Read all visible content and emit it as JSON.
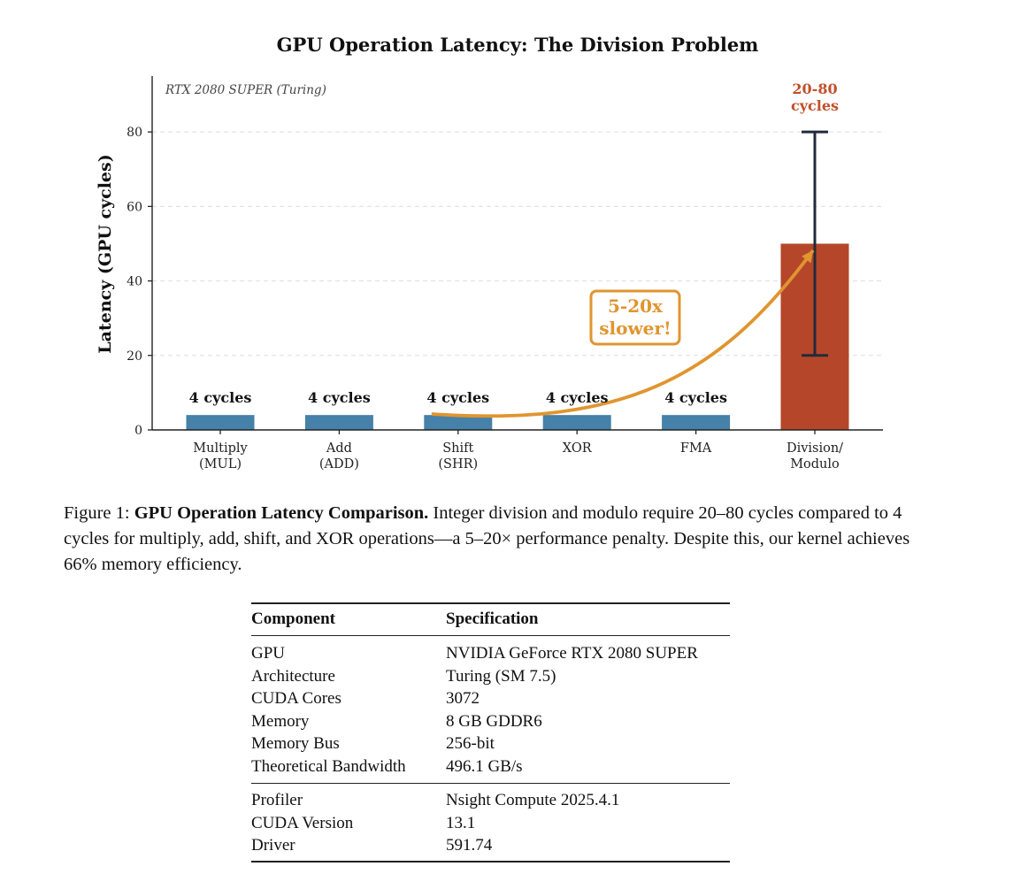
{
  "chart_data": {
    "type": "bar",
    "title": "GPU Operation Latency: The Division Problem",
    "subtitle": "RTX 2080 SUPER (Turing)",
    "ylabel": "Latency (GPU cycles)",
    "xlabel": "",
    "ylim": [
      0,
      95
    ],
    "yticks": [
      0,
      20,
      40,
      60,
      80
    ],
    "grid": true,
    "categories": [
      "Multiply\n(MUL)",
      "Add\n(ADD)",
      "Shift\n(SHR)",
      "XOR",
      "FMA",
      "Division/\nModulo"
    ],
    "values": [
      4,
      4,
      4,
      4,
      4,
      50
    ],
    "error_range": {
      "index": 5,
      "low": 20,
      "high": 80
    },
    "data_labels": [
      "4 cycles",
      "4 cycles",
      "4 cycles",
      "4 cycles",
      "4 cycles",
      "20-80\ncycles"
    ],
    "annotation": {
      "text": "5-20x\nslower!",
      "from_index": 2,
      "to_index": 5
    },
    "colors": {
      "bar": "#4581a8",
      "division_bar": "#b5462a",
      "division_label": "#c0502a",
      "error_bar": "#222b3a",
      "annotation": "#e0952f",
      "grid": "#dddddd",
      "axis": "#222222"
    }
  },
  "caption": {
    "prefix": "Figure 1: ",
    "title": "GPU Operation Latency Comparison.",
    "body": " Integer division and modulo require 20–80 cycles compared to 4 cycles for multiply, add, shift, and XOR operations—a 5–20× performance penalty. Despite this, our kernel achieves 66% memory efficiency."
  },
  "table": {
    "headers": [
      "Component",
      "Specification"
    ],
    "group1": [
      [
        "GPU",
        "NVIDIA GeForce RTX 2080 SUPER"
      ],
      [
        "Architecture",
        "Turing (SM 7.5)"
      ],
      [
        "CUDA Cores",
        "3072"
      ],
      [
        "Memory",
        "8 GB GDDR6"
      ],
      [
        "Memory Bus",
        "256-bit"
      ],
      [
        "Theoretical Bandwidth",
        "496.1 GB/s"
      ]
    ],
    "group2": [
      [
        "Profiler",
        "Nsight Compute 2025.4.1"
      ],
      [
        "CUDA Version",
        "13.1"
      ],
      [
        "Driver",
        "591.74"
      ]
    ]
  }
}
